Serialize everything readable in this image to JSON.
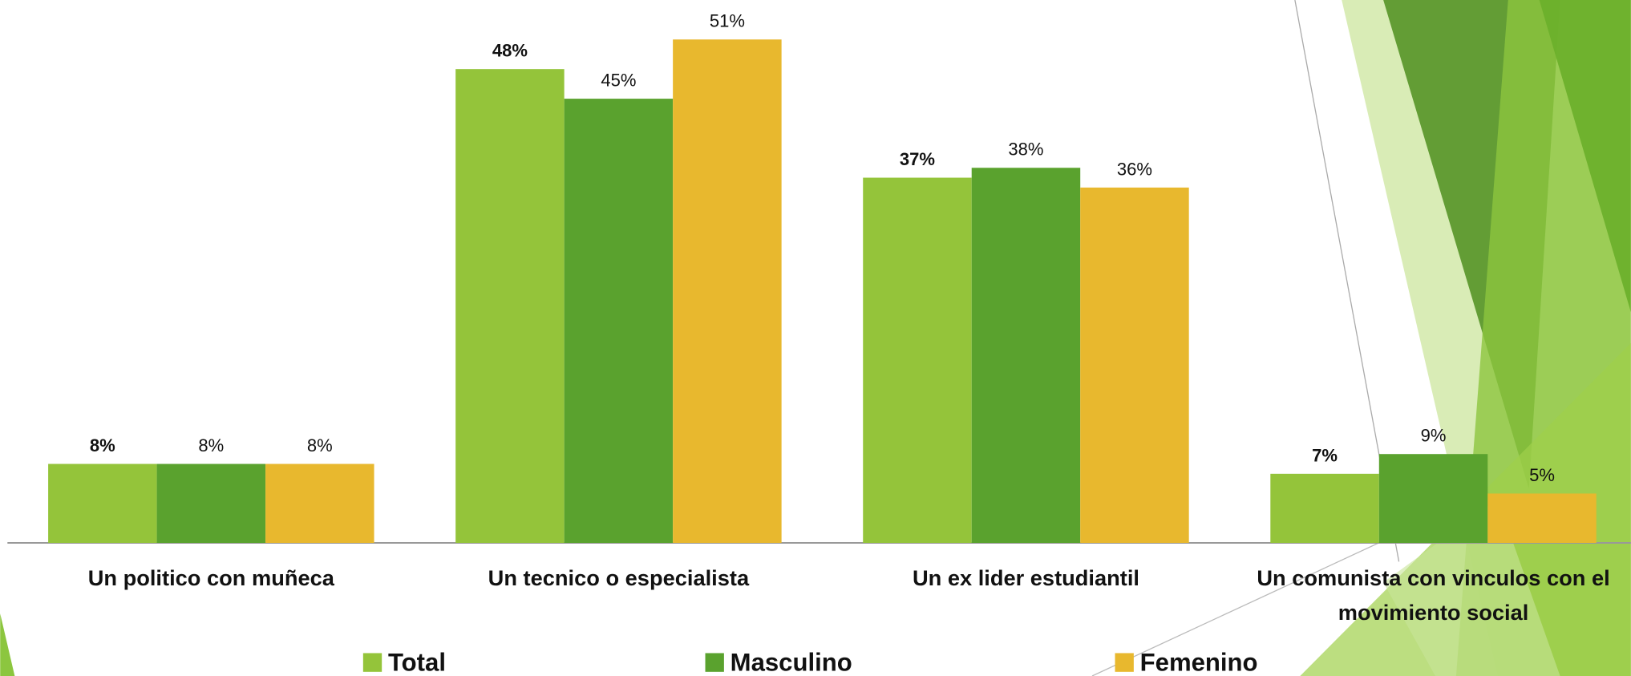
{
  "chart_data": {
    "type": "bar",
    "categories": [
      "Un politico con muñeca",
      "Un tecnico o especialista",
      "Un ex lider estudiantil",
      "Un comunista con vinculos con el movimiento social"
    ],
    "series": [
      {
        "name": "Total",
        "color": "#94c43a",
        "values": [
          8,
          48,
          37,
          7
        ],
        "value_labels": [
          "8%",
          "48%",
          "37%",
          "7%"
        ]
      },
      {
        "name": "Masculino",
        "color": "#5aa22e",
        "values": [
          8,
          45,
          38,
          9
        ],
        "value_labels": [
          "8%",
          "45%",
          "38%",
          "9%"
        ]
      },
      {
        "name": "Femenino",
        "color": "#e8b82e",
        "values": [
          8,
          51,
          36,
          5
        ],
        "value_labels": [
          "8%",
          "51%",
          "36%",
          "5%"
        ]
      }
    ],
    "ylim": [
      0,
      55
    ]
  }
}
